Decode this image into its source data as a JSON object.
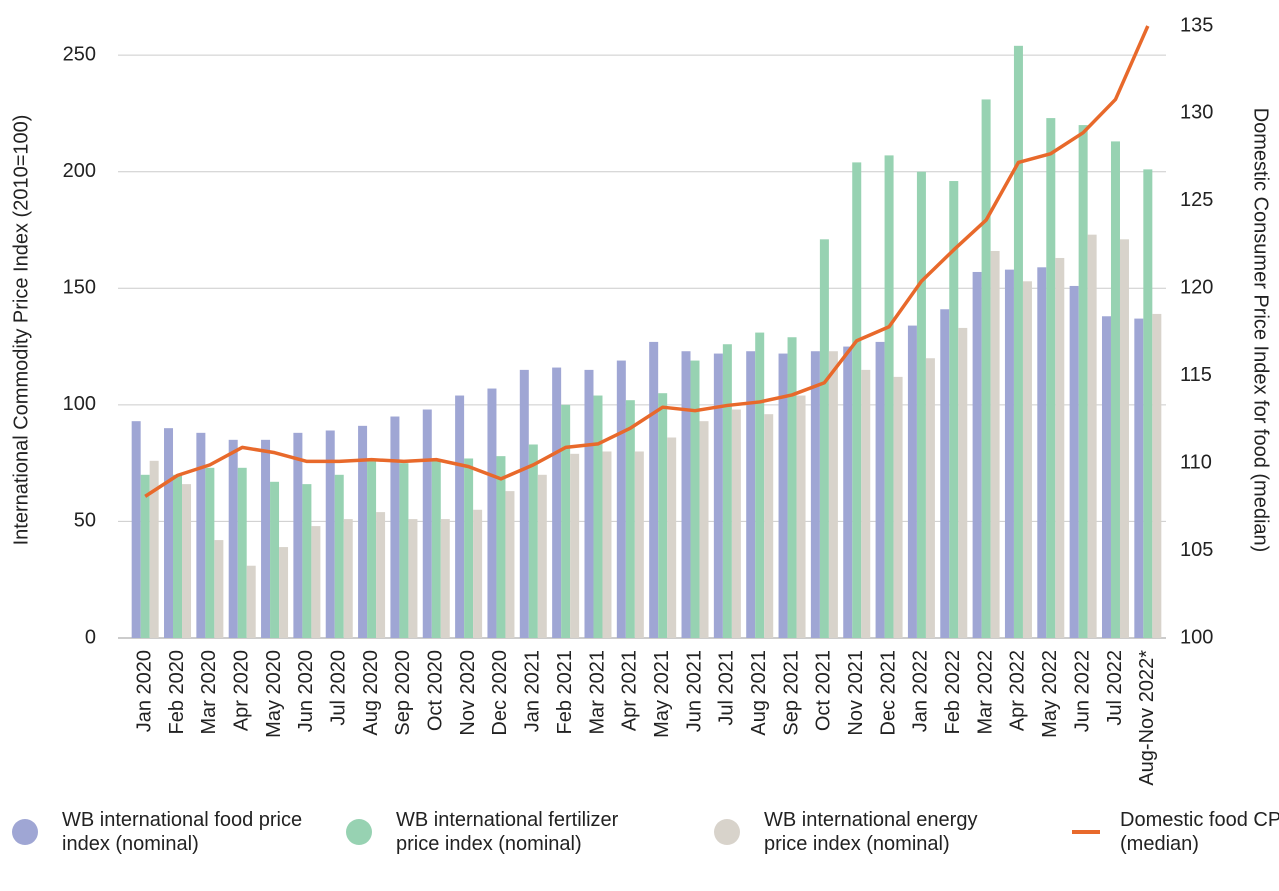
{
  "chart_data": {
    "type": "bar-line",
    "ylabel": "International Commodity Price Index (2010=100)",
    "y2label": "Domestic Consumer Price Index for food (median)",
    "categories": [
      "Jan 2020",
      "Feb 2020",
      "Mar 2020",
      "Apr 2020",
      "May 2020",
      "Jun 2020",
      "Jul 2020",
      "Aug 2020",
      "Sep 2020",
      "Oct 2020",
      "Nov 2020",
      "Dec 2020",
      "Jan 2021",
      "Feb 2021",
      "Mar 2021",
      "Apr 2021",
      "May 2021",
      "Jun 2021",
      "Jul 2021",
      "Aug 2021",
      "Sep 2021",
      "Oct 2021",
      "Nov 2021",
      "Dec 2021",
      "Jan 2022",
      "Feb 2022",
      "Mar 2022",
      "Apr 2022",
      "May 2022",
      "Jun 2022",
      "Jul 2022",
      "Aug-Nov 2022*"
    ],
    "series": [
      {
        "name": "WB international food price index (nominal)",
        "type": "bar",
        "color": "#9fa6d4",
        "values": [
          93,
          90,
          88,
          85,
          85,
          88,
          89,
          91,
          95,
          98,
          104,
          107,
          115,
          116,
          115,
          119,
          127,
          123,
          122,
          123,
          122,
          123,
          125,
          127,
          134,
          141,
          157,
          158,
          159,
          151,
          138,
          137
        ]
      },
      {
        "name": "WB international fertilizer price index (nominal)",
        "type": "bar",
        "color": "#97d2b2",
        "values": [
          70,
          70,
          73,
          73,
          67,
          66,
          70,
          76,
          75,
          76,
          77,
          78,
          83,
          100,
          104,
          102,
          105,
          119,
          126,
          131,
          129,
          171,
          204,
          207,
          200,
          196,
          231,
          254,
          223,
          220,
          213,
          201
        ]
      },
      {
        "name": "WB international energy price index (nominal)",
        "type": "bar",
        "color": "#d8d3cb",
        "values": [
          76,
          66,
          42,
          31,
          39,
          48,
          51,
          54,
          51,
          51,
          55,
          63,
          70,
          79,
          80,
          80,
          86,
          93,
          98,
          96,
          104,
          123,
          115,
          112,
          120,
          133,
          166,
          153,
          163,
          173,
          171,
          139
        ]
      },
      {
        "name": "Domestic food CPI (median)",
        "type": "line",
        "axis": "y2",
        "color": "#e8692b",
        "values": [
          108.1,
          109.3,
          109.9,
          110.9,
          110.6,
          110.1,
          110.1,
          110.2,
          110.1,
          110.2,
          109.8,
          109.1,
          109.9,
          110.9,
          111.1,
          112.0,
          113.2,
          113.0,
          113.3,
          113.5,
          113.9,
          114.6,
          117.0,
          117.8,
          120.4,
          122.2,
          123.9,
          127.2,
          127.7,
          128.9,
          130.8,
          135.0
        ]
      }
    ],
    "ylim": [
      0,
      262.5
    ],
    "yticks": [
      0,
      50,
      100,
      150,
      200,
      250
    ],
    "y2lim": [
      100,
      135
    ],
    "y2ticks": [
      100,
      105,
      110,
      115,
      120,
      125,
      130,
      135
    ],
    "grid": true,
    "legend": "bottom"
  }
}
